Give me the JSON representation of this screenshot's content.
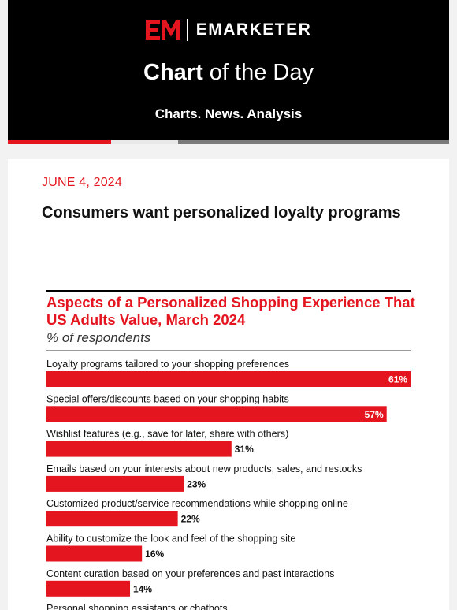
{
  "header": {
    "brand": "EMARKETER",
    "title_bold": "Chart",
    "title_rest": " of the Day",
    "tagline": "Charts. News. Analysis"
  },
  "article": {
    "date": "JUNE 4, 2024",
    "headline": "Consumers want personalized loyalty programs"
  },
  "colors": {
    "accent": "#e4151f",
    "background": "#f2f2f2",
    "header_bg": "#000000"
  },
  "chart_data": {
    "type": "bar",
    "orientation": "horizontal",
    "title": "Aspects of a Personalized Shopping Experience That US Adults Value, March 2024",
    "subtitle": "% of respondents",
    "categories": [
      "Loyalty programs tailored to your shopping preferences",
      "Special offers/discounts based on your shopping habits",
      "Wishlist features (e.g., save for later, share with others)",
      "Emails based on your interests about new products, sales, and restocks",
      "Customized product/service recommendations while shopping online",
      "Ability to customize the look and feel of the shopping site",
      "Content curation based on your preferences and past interactions",
      "Personal shopping assistants or chatbots"
    ],
    "values": [
      61,
      57,
      31,
      23,
      22,
      16,
      14,
      null
    ],
    "value_labels": [
      "61%",
      "57%",
      "31%",
      "23%",
      "22%",
      "16%",
      "14%",
      ""
    ],
    "xlim": [
      0,
      61
    ],
    "label_inside_threshold": 50,
    "bar_color": "#e4151f"
  }
}
